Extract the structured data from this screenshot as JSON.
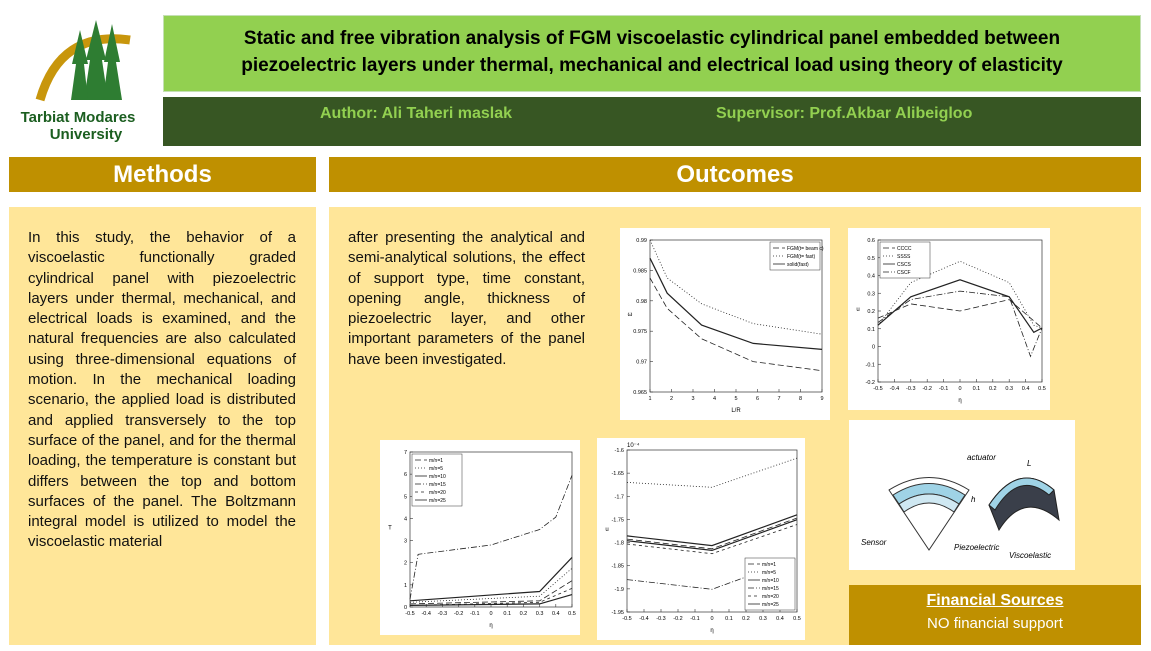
{
  "logo": {
    "line1": "Tarbiat Modares",
    "line2": "University"
  },
  "header": {
    "title_line1": "Static and free vibration analysis of FGM viscoelastic cylindrical panel embedded between",
    "title_line2": "piezoelectric layers under thermal, mechanical and electrical load using theory of elasticity",
    "author": "Author: Ali Taheri maslak",
    "supervisor": "Supervisor: Prof.Akbar Alibeigloo"
  },
  "methods": {
    "heading": "Methods",
    "text": "In this study, the behavior of a viscoelastic functionally graded cylindrical panel with piezoelectric layers under thermal, mechanical, and electrical loads is examined, and the natural frequencies are also calculated using three-dimensional equations of motion. In the mechanical loading scenario, the applied load is distributed and applied transversely to the top surface of the panel, and for the thermal loading, the temperature is constant but differs between the top and bottom surfaces of the panel. The Boltzmann integral model is utilized to model the viscoelastic material"
  },
  "outcomes": {
    "heading": "Outcomes",
    "text": "after presenting the analytical and semi-analytical solutions, the effect of support type, time constant, opening angle, thickness of piezoelectric layer, and other important parameters of the panel have been investigated."
  },
  "figures": [
    {
      "xlabel": "L/R",
      "ylabel": "ω",
      "yticks": [
        "0.99",
        "0.985",
        "0.98",
        "0.975",
        "0.97",
        "0.965"
      ],
      "xticks": [
        "1",
        "2",
        "3",
        "4",
        "5",
        "6",
        "7",
        "8",
        "9"
      ],
      "legend": [
        "FGM(t= beam c)",
        "FGM(t= fast)",
        "solid(fast)"
      ]
    },
    {
      "xlabel": "η",
      "ylabel": "u",
      "yticks": [
        "0.6",
        "0.5",
        "0.4",
        "0.3",
        "0.2",
        "0.1",
        "0",
        "-0.1",
        "-0.2"
      ],
      "xticks": [
        "-0.5",
        "-0.4",
        "-0.3",
        "-0.2",
        "-0.1",
        "0",
        "0.1",
        "0.2",
        "0.3",
        "0.4",
        "0.5"
      ],
      "legend": [
        "CCCC",
        "SSSS",
        "CSCS",
        "CSCF"
      ]
    },
    {
      "xlabel": "η",
      "ylabel": "T",
      "yticks": [
        "7",
        "6",
        "5",
        "4",
        "3",
        "2",
        "1",
        "0"
      ],
      "xticks": [
        "-0.5",
        "-0.4",
        "-0.3",
        "-0.2",
        "-0.1",
        "0",
        "0.1",
        "0.2",
        "0.3",
        "0.4",
        "0.5"
      ],
      "legend": [
        "m/n=1",
        "m/n=5",
        "m/n=10",
        "m/n=15",
        "m/n=20",
        "m/n=25"
      ]
    },
    {
      "xlabel": "η",
      "ylabel": "u",
      "exponent": "10⁻⁴",
      "yticks": [
        "-1.6",
        "-1.65",
        "-1.7",
        "-1.75",
        "-1.8",
        "-1.85",
        "-1.9",
        "-1.95"
      ],
      "xticks": [
        "-0.5",
        "-0.4",
        "-0.3",
        "-0.2",
        "-0.1",
        "0",
        "0.1",
        "0.2",
        "0.3",
        "0.4",
        "0.5"
      ],
      "legend": [
        "m/n=1",
        "m/n=5",
        "m/n=10",
        "m/n=15",
        "m/n=20",
        "m/n=25"
      ]
    }
  ],
  "diagram": {
    "actuator": "actuator",
    "sensor": "Sensor",
    "piezoelectric": "Piezoelectric",
    "viscoelastic": "Viscoelastic",
    "length": "L",
    "thickness": "h"
  },
  "financial": {
    "heading": "Financial Sources",
    "text": "NO financial support"
  }
}
